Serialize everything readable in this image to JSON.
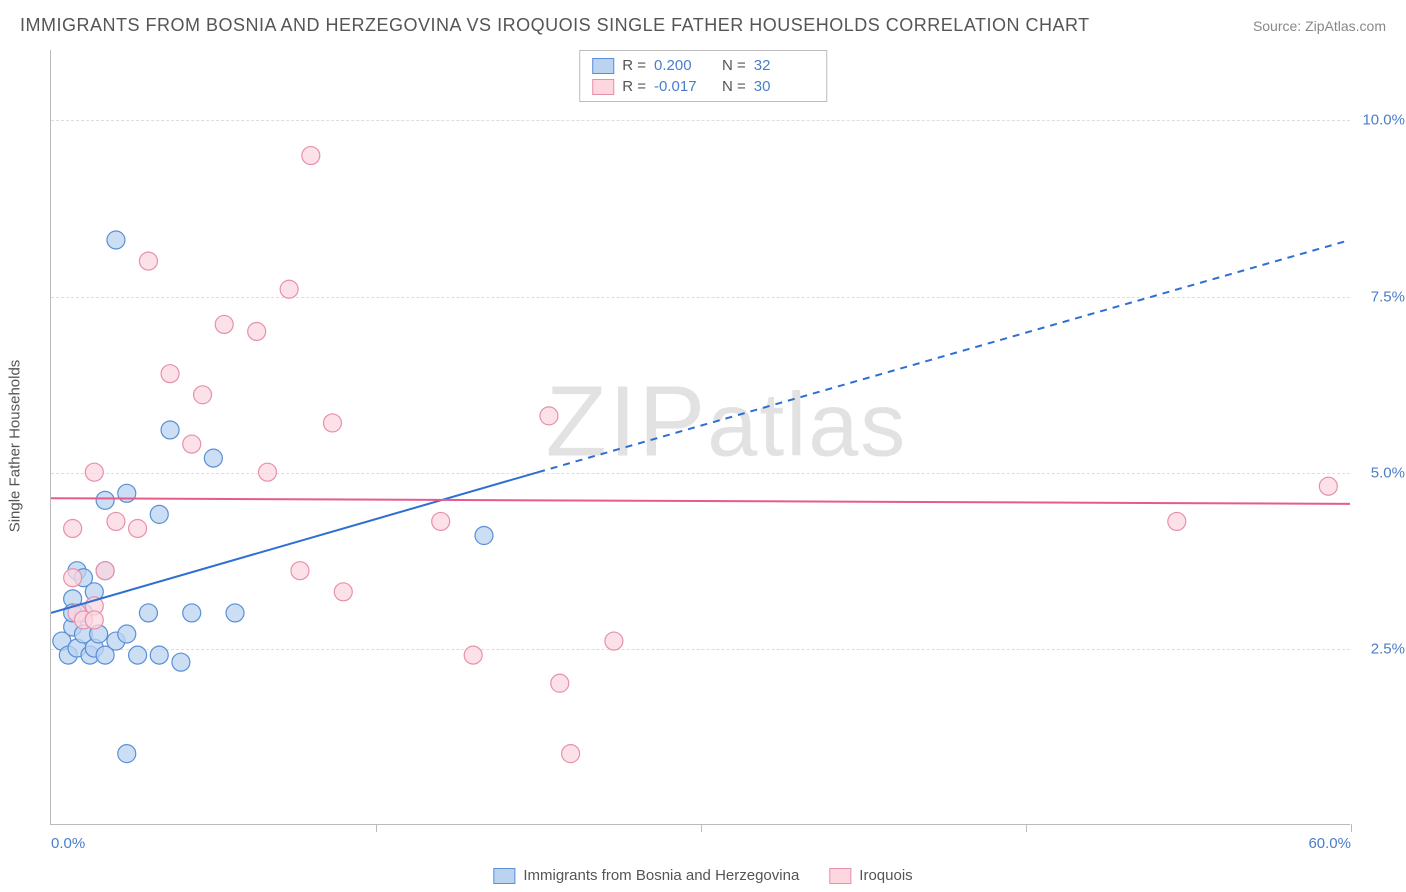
{
  "title": "IMMIGRANTS FROM BOSNIA AND HERZEGOVINA VS IROQUOIS SINGLE FATHER HOUSEHOLDS CORRELATION CHART",
  "source": "Source: ZipAtlas.com",
  "watermark": "ZIPatlas",
  "y_axis_label": "Single Father Households",
  "chart": {
    "type": "scatter",
    "xlim": [
      0,
      60
    ],
    "ylim": [
      0,
      11
    ],
    "x_ticks": [
      0,
      30,
      60
    ],
    "x_tick_labels": [
      "0.0%",
      "",
      "60.0%"
    ],
    "y_ticks": [
      2.5,
      5.0,
      7.5,
      10.0
    ],
    "y_tick_labels": [
      "2.5%",
      "5.0%",
      "7.5%",
      "10.0%"
    ],
    "grid_color": "#dddddd",
    "background_color": "#ffffff",
    "series": [
      {
        "name": "Immigrants from Bosnia and Herzegovina",
        "fill": "#b9d3f0",
        "stroke": "#5a8fd6",
        "marker_radius": 9,
        "r_value": "0.200",
        "n_value": "32",
        "trend": {
          "x1": 0,
          "y1": 3.0,
          "x2": 22.5,
          "y2": 5.0,
          "x2_ext": 60,
          "y2_ext": 8.3,
          "color": "#2e6fd1",
          "width": 2
        },
        "points": [
          [
            0.5,
            2.6
          ],
          [
            0.8,
            2.4
          ],
          [
            1.0,
            2.8
          ],
          [
            1.2,
            2.5
          ],
          [
            1.5,
            2.7
          ],
          [
            1.8,
            2.4
          ],
          [
            1.0,
            3.2
          ],
          [
            1.5,
            3.0
          ],
          [
            2.0,
            2.5
          ],
          [
            2.2,
            2.7
          ],
          [
            2.0,
            3.3
          ],
          [
            2.5,
            2.4
          ],
          [
            3.0,
            2.6
          ],
          [
            3.5,
            2.7
          ],
          [
            4.0,
            2.4
          ],
          [
            5.0,
            2.4
          ],
          [
            6.0,
            2.3
          ],
          [
            3.0,
            8.3
          ],
          [
            2.5,
            4.6
          ],
          [
            3.5,
            4.7
          ],
          [
            5.0,
            4.4
          ],
          [
            7.5,
            5.2
          ],
          [
            4.5,
            3.0
          ],
          [
            5.5,
            5.6
          ],
          [
            6.5,
            3.0
          ],
          [
            8.5,
            3.0
          ],
          [
            3.5,
            1.0
          ],
          [
            20.0,
            4.1
          ],
          [
            1.2,
            3.6
          ],
          [
            1.0,
            3.0
          ],
          [
            1.5,
            3.5
          ],
          [
            2.5,
            3.6
          ]
        ]
      },
      {
        "name": "Iroquois",
        "fill": "#fcd7e0",
        "stroke": "#e890ab",
        "marker_radius": 9,
        "r_value": "-0.017",
        "n_value": "30",
        "trend": {
          "x1": 0,
          "y1": 4.63,
          "x2": 60,
          "y2": 4.55,
          "color": "#e85a8a",
          "width": 2
        },
        "points": [
          [
            1.0,
            3.5
          ],
          [
            1.2,
            3.0
          ],
          [
            1.5,
            2.9
          ],
          [
            2.0,
            3.1
          ],
          [
            2.5,
            3.6
          ],
          [
            3.0,
            4.3
          ],
          [
            2.0,
            5.0
          ],
          [
            4.0,
            4.2
          ],
          [
            4.5,
            8.0
          ],
          [
            5.5,
            6.4
          ],
          [
            6.5,
            5.4
          ],
          [
            7.0,
            6.1
          ],
          [
            9.5,
            7.0
          ],
          [
            10.0,
            5.0
          ],
          [
            11.0,
            7.6
          ],
          [
            11.5,
            3.6
          ],
          [
            12.0,
            9.5
          ],
          [
            13.0,
            5.7
          ],
          [
            13.5,
            3.3
          ],
          [
            18.0,
            4.3
          ],
          [
            19.5,
            2.4
          ],
          [
            23.0,
            5.8
          ],
          [
            23.5,
            2.0
          ],
          [
            24.0,
            1.0
          ],
          [
            26.0,
            2.6
          ],
          [
            52.0,
            4.3
          ],
          [
            59.0,
            4.8
          ],
          [
            8.0,
            7.1
          ],
          [
            1.0,
            4.2
          ],
          [
            2.0,
            2.9
          ]
        ]
      }
    ]
  },
  "stats_box": {
    "rows": [
      {
        "swatch_fill": "#b9d3f0",
        "swatch_stroke": "#5a8fd6",
        "r_label": "R =",
        "r": "0.200",
        "n_label": "N =",
        "n": "32"
      },
      {
        "swatch_fill": "#fcd7e0",
        "swatch_stroke": "#e890ab",
        "r_label": "R =",
        "r": "-0.017",
        "n_label": "N =",
        "n": "30"
      }
    ]
  },
  "legend": [
    {
      "swatch_fill": "#b9d3f0",
      "swatch_stroke": "#5a8fd6",
      "label": "Immigrants from Bosnia and Herzegovina"
    },
    {
      "swatch_fill": "#fcd7e0",
      "swatch_stroke": "#e890ab",
      "label": "Iroquois"
    }
  ]
}
